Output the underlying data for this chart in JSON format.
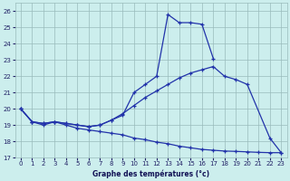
{
  "bg_color": "#cceeed",
  "grid_color": "#99bbbb",
  "line_color": "#2233aa",
  "xlabel": "Graphe des températures (°c)",
  "xlim": [
    -0.5,
    23.5
  ],
  "ylim": [
    17,
    26.5
  ],
  "yticks": [
    17,
    18,
    19,
    20,
    21,
    22,
    23,
    24,
    25,
    26
  ],
  "xticks": [
    0,
    1,
    2,
    3,
    4,
    5,
    6,
    7,
    8,
    9,
    10,
    11,
    12,
    13,
    14,
    15,
    16,
    17,
    18,
    19,
    20,
    21,
    22,
    23
  ],
  "series": [
    {
      "x": [
        0,
        1,
        2,
        3,
        4,
        5,
        6,
        7,
        8,
        9,
        10,
        11,
        12,
        13,
        14,
        15,
        16,
        17,
        18,
        19,
        20,
        21,
        22,
        23
      ],
      "y": [
        20.0,
        19.2,
        19.0,
        19.2,
        19.0,
        18.8,
        18.7,
        18.6,
        18.5,
        18.4,
        18.2,
        18.1,
        17.95,
        17.85,
        17.7,
        17.6,
        17.5,
        17.45,
        17.4,
        17.38,
        17.35,
        17.32,
        17.3,
        17.3
      ]
    },
    {
      "x": [
        0,
        1,
        2,
        3,
        4,
        5,
        6,
        7,
        8,
        9,
        10,
        11,
        12,
        13,
        14,
        15,
        16,
        17,
        18,
        19,
        20,
        22,
        23
      ],
      "y": [
        20.0,
        19.2,
        19.1,
        19.2,
        19.1,
        19.0,
        18.9,
        19.0,
        19.3,
        19.7,
        20.2,
        20.7,
        21.1,
        21.5,
        21.9,
        22.2,
        22.4,
        22.6,
        22.0,
        21.8,
        21.5,
        18.2,
        17.3
      ]
    },
    {
      "x": [
        0,
        1,
        2,
        3,
        4,
        5,
        6,
        7,
        8,
        9,
        10,
        11,
        12,
        13,
        14,
        15,
        16,
        17
      ],
      "y": [
        20.0,
        19.2,
        19.1,
        19.2,
        19.1,
        19.0,
        18.9,
        19.0,
        19.3,
        19.6,
        21.0,
        21.5,
        22.0,
        25.8,
        25.3,
        25.3,
        25.2,
        23.1
      ]
    }
  ]
}
